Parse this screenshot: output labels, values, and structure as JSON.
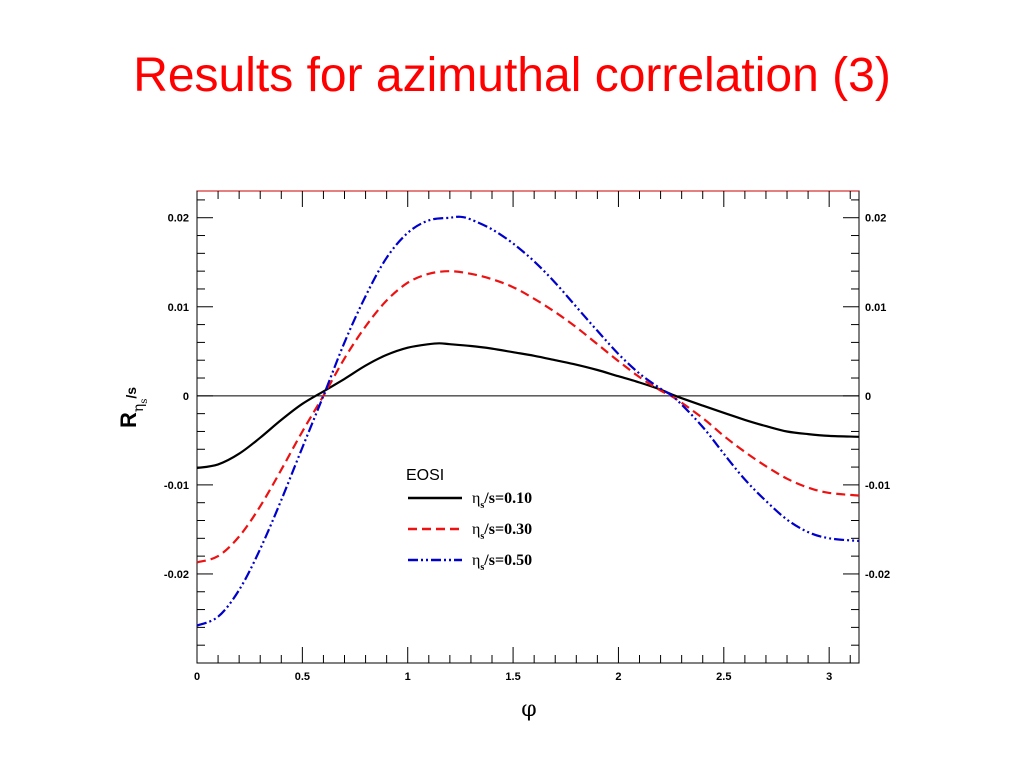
{
  "slide": {
    "title": "Results for azimuthal correlation (3)"
  },
  "chart_data": {
    "type": "line",
    "xlabel": "φ",
    "ylabel": {
      "main": "R",
      "sub1": "η",
      "sub2": "s",
      "suffix": "/s"
    },
    "xlim": [
      0,
      3.1416
    ],
    "ylim": [
      -0.03,
      0.023
    ],
    "x_ticks": [
      0,
      0.5,
      1,
      1.5,
      2,
      2.5,
      3
    ],
    "x_tick_labels": [
      "0",
      "0.5",
      "1",
      "1.5",
      "2",
      "2.5",
      "3"
    ],
    "y_ticks": [
      -0.02,
      -0.01,
      0,
      0.01,
      0.02
    ],
    "y_tick_labels": [
      "-0.02",
      "-0.01",
      "0",
      "0.01",
      "0.02"
    ],
    "zero_line": true,
    "grid": false,
    "legend": {
      "title": "EOSI",
      "placement": "center-bottom"
    },
    "series": [
      {
        "name": "ηs/s=0.10",
        "label_prefix": "η",
        "label_sub": "s",
        "label_rest": "/s=0.10",
        "color": "#000000",
        "dash": "solid",
        "x": [
          0,
          0.1,
          0.2,
          0.3,
          0.4,
          0.5,
          0.6,
          0.7,
          0.8,
          0.9,
          1.0,
          1.1,
          1.15,
          1.2,
          1.3,
          1.4,
          1.5,
          1.6,
          1.7,
          1.8,
          1.9,
          2.0,
          2.1,
          2.2,
          2.27,
          2.4,
          2.5,
          2.6,
          2.7,
          2.8,
          2.9,
          3.0,
          3.1416
        ],
        "y": [
          -0.0081,
          -0.0077,
          -0.0065,
          -0.0047,
          -0.0027,
          -0.0009,
          0.0005,
          0.0019,
          0.0034,
          0.0046,
          0.0054,
          0.0058,
          0.0059,
          0.0058,
          0.0056,
          0.0053,
          0.0049,
          0.0045,
          0.004,
          0.0035,
          0.0029,
          0.0022,
          0.0015,
          0.0007,
          0.0,
          -0.0011,
          -0.0019,
          -0.0027,
          -0.0034,
          -0.004,
          -0.0043,
          -0.0045,
          -0.0046
        ]
      },
      {
        "name": "ηs/s=0.30",
        "label_prefix": "η",
        "label_sub": "s",
        "label_rest": "/s=0.30",
        "color": "#ee1111",
        "dash": "dashed",
        "x": [
          0,
          0.1,
          0.2,
          0.3,
          0.4,
          0.5,
          0.6,
          0.7,
          0.8,
          0.9,
          1.0,
          1.1,
          1.2,
          1.3,
          1.4,
          1.5,
          1.6,
          1.7,
          1.8,
          1.9,
          2.0,
          2.1,
          2.2,
          2.27,
          2.4,
          2.5,
          2.6,
          2.7,
          2.8,
          2.9,
          3.0,
          3.1416
        ],
        "y": [
          -0.0187,
          -0.018,
          -0.0158,
          -0.0124,
          -0.0083,
          -0.004,
          0.0,
          0.0042,
          0.0078,
          0.0107,
          0.0127,
          0.0137,
          0.014,
          0.0137,
          0.0131,
          0.0122,
          0.0109,
          0.0094,
          0.0077,
          0.0058,
          0.0039,
          0.0021,
          0.0006,
          -0.0003,
          -0.0025,
          -0.0045,
          -0.0063,
          -0.0079,
          -0.0093,
          -0.0103,
          -0.0109,
          -0.0112
        ]
      },
      {
        "name": "ηs/s=0.50",
        "label_prefix": "η",
        "label_sub": "s",
        "label_rest": "/s=0.50",
        "color": "#0000cc",
        "dash": "dash-dot-dot",
        "x": [
          0,
          0.1,
          0.2,
          0.3,
          0.4,
          0.5,
          0.6,
          0.7,
          0.8,
          0.9,
          1.0,
          1.1,
          1.2,
          1.25,
          1.3,
          1.4,
          1.5,
          1.6,
          1.7,
          1.8,
          1.9,
          2.0,
          2.1,
          2.2,
          2.27,
          2.4,
          2.5,
          2.6,
          2.7,
          2.8,
          2.9,
          3.0,
          3.1416
        ],
        "y": [
          -0.0258,
          -0.0248,
          -0.0218,
          -0.0172,
          -0.0117,
          -0.0058,
          0.0,
          0.006,
          0.0112,
          0.0155,
          0.0183,
          0.0197,
          0.02,
          0.0201,
          0.0198,
          0.0187,
          0.0171,
          0.0151,
          0.0127,
          0.01,
          0.0073,
          0.0047,
          0.0025,
          0.0008,
          -0.0003,
          -0.0035,
          -0.0065,
          -0.0094,
          -0.0118,
          -0.0139,
          -0.0153,
          -0.016,
          -0.0163
        ]
      }
    ]
  }
}
